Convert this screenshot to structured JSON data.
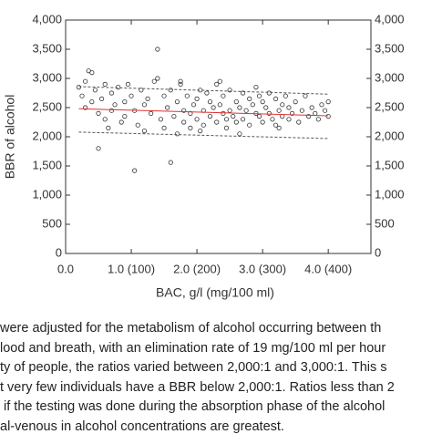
{
  "chart_data": {
    "type": "scatter",
    "x_label": "BAC, g/l (mg/100 ml)",
    "y_label": "BBR of alcohol",
    "xlim": [
      0,
      4.65
    ],
    "ylim": [
      0,
      4000
    ],
    "xticks": [
      {
        "value": 0,
        "label": "0.0"
      },
      {
        "value": 1,
        "label": "1.0 (100)"
      },
      {
        "value": 2,
        "label": "2.0 (200)"
      },
      {
        "value": 3,
        "label": "3.0 (300)"
      },
      {
        "value": 4,
        "label": "4.0 (400)"
      }
    ],
    "yticks": [
      0,
      500,
      {
        "value": 1000,
        "label": "1,000"
      },
      {
        "value": 1500,
        "label": "1,500"
      },
      {
        "value": 2000,
        "label": "2,000"
      },
      {
        "value": 2500,
        "label": "2,500"
      },
      {
        "value": 3000,
        "label": "3,000"
      },
      {
        "value": 3500,
        "label": "3,500"
      },
      {
        "value": 4000,
        "label": "4,000"
      }
    ],
    "color": "#333333",
    "x": [
      0.2,
      0.25,
      0.3,
      0.3,
      0.35,
      0.4,
      0.4,
      0.45,
      0.5,
      0.5,
      0.55,
      0.6,
      0.6,
      0.65,
      0.7,
      0.7,
      0.75,
      0.8,
      0.85,
      0.9,
      0.9,
      0.95,
      1.0,
      1.05,
      1.05,
      1.1,
      1.15,
      1.2,
      1.2,
      1.25,
      1.3,
      1.35,
      1.4,
      1.4,
      1.45,
      1.5,
      1.5,
      1.55,
      1.6,
      1.6,
      1.65,
      1.7,
      1.7,
      1.75,
      1.8,
      1.8,
      1.85,
      1.9,
      1.9,
      1.95,
      2.0,
      2.0,
      2.05,
      2.1,
      2.1,
      2.15,
      2.2,
      2.2,
      2.25,
      2.3,
      2.3,
      2.35,
      2.4,
      2.4,
      2.45,
      2.5,
      2.5,
      2.55,
      2.6,
      2.6,
      2.65,
      2.7,
      2.7,
      2.75,
      2.8,
      2.8,
      2.85,
      2.9,
      2.9,
      2.95,
      3.0,
      3.0,
      3.05,
      3.1,
      3.1,
      3.15,
      3.2,
      3.2,
      3.25,
      3.3,
      3.3,
      3.35,
      3.4,
      3.4,
      3.45,
      3.5,
      3.55,
      3.6,
      3.65,
      3.7,
      3.75,
      3.8,
      3.85,
      3.9,
      3.95,
      4.0,
      4.0,
      2.05,
      2.35,
      2.65,
      2.95,
      3.25,
      1.75,
      2.45
    ],
    "y": [
      2850,
      2700,
      2950,
      2500,
      3130,
      3100,
      2600,
      2800,
      1800,
      2400,
      2650,
      2300,
      2900,
      2150,
      2750,
      2450,
      2550,
      2850,
      2250,
      2600,
      2350,
      2900,
      2700,
      2450,
      1420,
      2200,
      2800,
      2550,
      2100,
      2650,
      2400,
      2950,
      3500,
      3000,
      2300,
      2700,
      2150,
      2500,
      1560,
      2800,
      2350,
      2600,
      2050,
      2900,
      2450,
      2250,
      2700,
      2400,
      2150,
      2550,
      2650,
      2300,
      2800,
      2450,
      2200,
      2750,
      2350,
      2600,
      2500,
      2900,
      2250,
      2550,
      2400,
      2700,
      2150,
      2450,
      2800,
      2350,
      2600,
      2250,
      2500,
      2750,
      2300,
      2450,
      2650,
      2200,
      2550,
      2850,
      2400,
      2350,
      2600,
      2250,
      2500,
      2750,
      2400,
      2300,
      2650,
      2200,
      2450,
      2550,
      2350,
      2700,
      2300,
      2500,
      2400,
      2600,
      2250,
      2450,
      2700,
      2350,
      2500,
      2400,
      2300,
      2550,
      2450,
      2600,
      2350,
      2100,
      2950,
      2050,
      2700,
      2150,
      2950,
      2300
    ],
    "fit": {
      "x": [
        0.2,
        4.0
      ],
      "y": [
        2480,
        2360
      ],
      "color": "#e03030"
    },
    "bounds": [
      {
        "x": [
          0.2,
          4.0
        ],
        "y": [
          2860,
          2730
        ],
        "color": "#555555"
      },
      {
        "x": [
          0.2,
          4.0
        ],
        "y": [
          2080,
          1970
        ],
        "color": "#555555"
      }
    ]
  },
  "caption": [
    "were adjusted for the metabolism of alcohol occurring between th",
    "lood and breath, with an elimination rate of 19 mg/100 ml per hour",
    "ty of people, the ratios varied between 2,000:1 and 3,000:1. This s",
    "t very few individuals have a BBR below 2,000:1. Ratios less than 2",
    " if the testing was done during the absorption phase of the alcohol",
    "al-venous in alcohol concentrations are greatest."
  ]
}
